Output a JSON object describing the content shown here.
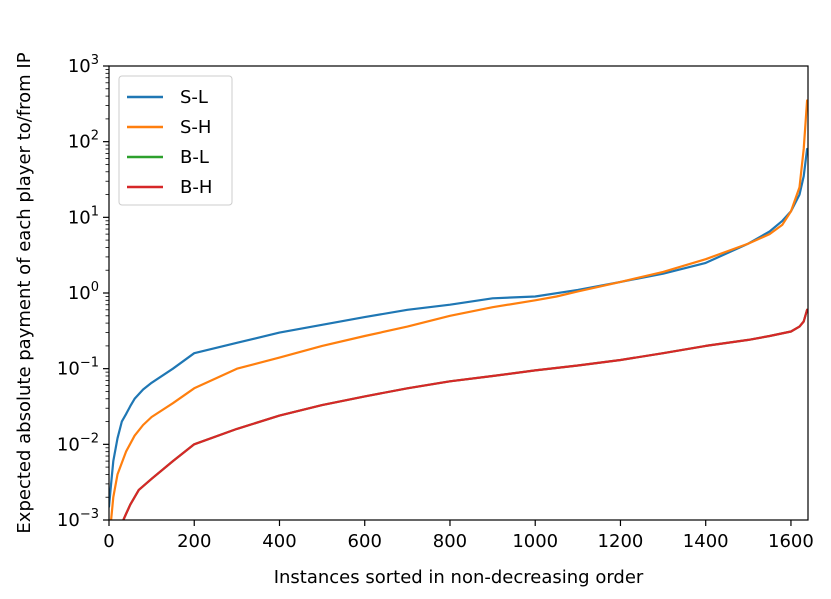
{
  "chart_data": {
    "type": "line",
    "xlabel": "Instances sorted in non-decreasing order",
    "ylabel": "Expected absolute payment of each player to/from IP",
    "xlim": [
      0,
      1640
    ],
    "ylim": [
      0.001,
      1000
    ],
    "yscale": "log",
    "x_ticks": [
      0,
      200,
      400,
      600,
      800,
      1000,
      1200,
      1400,
      1600
    ],
    "x_tick_labels": [
      "0",
      "200",
      "400",
      "600",
      "800",
      "1000",
      "1200",
      "1400",
      "1600"
    ],
    "y_ticks": [
      0.001,
      0.01,
      0.1,
      1,
      10,
      100,
      1000
    ],
    "y_tick_labels": [
      {
        "base": "10",
        "exp": "−3"
      },
      {
        "base": "10",
        "exp": "−2"
      },
      {
        "base": "10",
        "exp": "−1"
      },
      {
        "base": "10",
        "exp": "0"
      },
      {
        "base": "10",
        "exp": "1"
      },
      {
        "base": "10",
        "exp": "2"
      },
      {
        "base": "10",
        "exp": "3"
      }
    ],
    "grid": false,
    "legend_position": "top-left",
    "series": [
      {
        "name": "S-L",
        "color": "#1f77b4",
        "x": [
          0,
          5,
          10,
          20,
          30,
          40,
          50,
          60,
          80,
          100,
          150,
          200,
          300,
          400,
          500,
          600,
          700,
          800,
          900,
          1000,
          1100,
          1200,
          1300,
          1400,
          1500,
          1550,
          1580,
          1600,
          1620,
          1630,
          1638
        ],
        "y": [
          0.0015,
          0.003,
          0.006,
          0.012,
          0.02,
          0.025,
          0.032,
          0.04,
          0.053,
          0.065,
          0.1,
          0.16,
          0.22,
          0.3,
          0.38,
          0.48,
          0.6,
          0.7,
          0.85,
          0.9,
          1.1,
          1.4,
          1.8,
          2.5,
          4.5,
          6.5,
          9,
          12,
          20,
          35,
          80
        ]
      },
      {
        "name": "S-H",
        "color": "#ff7f0e",
        "x": [
          0,
          5,
          10,
          20,
          40,
          60,
          80,
          100,
          150,
          200,
          300,
          400,
          500,
          600,
          700,
          800,
          900,
          1000,
          1050,
          1100,
          1200,
          1300,
          1400,
          1500,
          1550,
          1580,
          1600,
          1620,
          1630,
          1638
        ],
        "y": [
          0.0003,
          0.001,
          0.002,
          0.004,
          0.008,
          0.013,
          0.018,
          0.023,
          0.035,
          0.055,
          0.1,
          0.14,
          0.2,
          0.27,
          0.36,
          0.5,
          0.65,
          0.8,
          0.9,
          1.05,
          1.4,
          1.9,
          2.8,
          4.5,
          6,
          8,
          12,
          25,
          80,
          350
        ]
      },
      {
        "name": "B-L",
        "color": "#2ca02c",
        "x": [
          30,
          40,
          50,
          70,
          100,
          150,
          200,
          300,
          400,
          500,
          600,
          700,
          800,
          900,
          1000,
          1100,
          1200,
          1300,
          1400,
          1500,
          1550,
          1600,
          1620,
          1630,
          1638
        ],
        "y": [
          0.0009,
          0.0012,
          0.0016,
          0.0025,
          0.0035,
          0.006,
          0.01,
          0.016,
          0.024,
          0.033,
          0.043,
          0.055,
          0.068,
          0.08,
          0.095,
          0.11,
          0.13,
          0.16,
          0.2,
          0.24,
          0.27,
          0.31,
          0.36,
          0.42,
          0.6
        ]
      },
      {
        "name": "B-H",
        "color": "#d62728",
        "x": [
          30,
          40,
          50,
          70,
          100,
          150,
          200,
          300,
          400,
          500,
          600,
          700,
          800,
          900,
          1000,
          1100,
          1200,
          1300,
          1400,
          1500,
          1550,
          1600,
          1620,
          1630,
          1638
        ],
        "y": [
          0.0009,
          0.0012,
          0.0016,
          0.0025,
          0.0035,
          0.006,
          0.01,
          0.016,
          0.024,
          0.033,
          0.043,
          0.055,
          0.068,
          0.08,
          0.095,
          0.11,
          0.13,
          0.16,
          0.2,
          0.24,
          0.27,
          0.31,
          0.36,
          0.42,
          0.6
        ]
      }
    ]
  }
}
